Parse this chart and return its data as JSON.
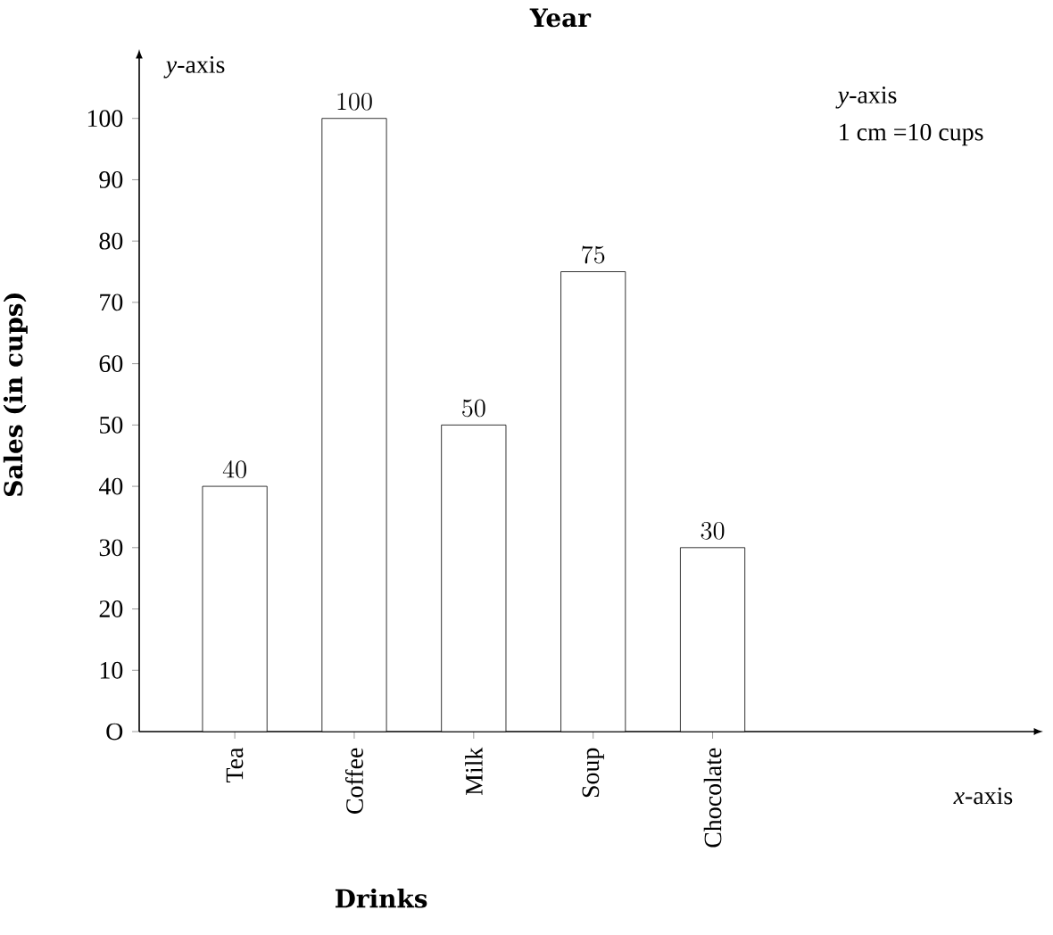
{
  "chart_data": {
    "type": "bar",
    "title": "Year",
    "xlabel": "Drinks",
    "ylabel": "Sales (in cups)",
    "categories": [
      "Tea",
      "Coffee",
      "Milk",
      "Soup",
      "Chocolate"
    ],
    "values": [
      40,
      100,
      50,
      75,
      30
    ],
    "color": "#ffffff",
    "data_labels": true,
    "ylim": [
      0,
      110
    ],
    "yticks": [
      {
        "value": 0,
        "label": "O"
      },
      10,
      20,
      30,
      40,
      50,
      60,
      70,
      80,
      90,
      100
    ],
    "annotations": [
      "*y*-axis",
      "*x*-axis",
      "*y*-axis",
      "1 cm =10 cups"
    ],
    "grid": false
  }
}
